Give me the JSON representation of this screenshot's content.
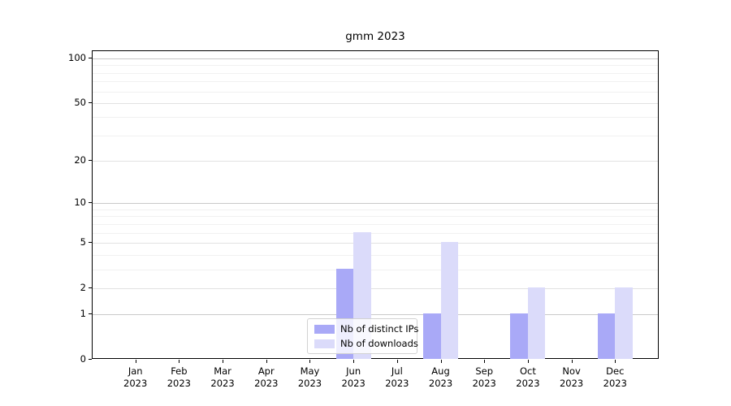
{
  "figure": {
    "title": "gmm 2023"
  },
  "chart_data": {
    "type": "bar",
    "title": "gmm 2023",
    "categories": [
      "Jan",
      "Feb",
      "Mar",
      "Apr",
      "May",
      "Jun",
      "Jul",
      "Aug",
      "Sep",
      "Oct",
      "Nov",
      "Dec"
    ],
    "x_tick_year": "2023",
    "series": [
      {
        "name": "Nb of distinct IPs",
        "color": "#a9a9f7",
        "values": [
          0,
          0,
          0,
          0,
          0,
          3,
          0,
          1,
          0,
          1,
          0,
          1
        ]
      },
      {
        "name": "Nb of downloads",
        "color": "#dbdbfa",
        "values": [
          0,
          0,
          0,
          0,
          0,
          6,
          0,
          5,
          0,
          2,
          0,
          2
        ]
      }
    ],
    "xlabel": "",
    "ylabel": "",
    "y_axis": {
      "scale": "log1p",
      "ticks": [
        0,
        1,
        2,
        5,
        10,
        20,
        50,
        100
      ],
      "minor_ticks": [
        3,
        4,
        6,
        7,
        8,
        9,
        30,
        40,
        60,
        70,
        80,
        90
      ],
      "ylim": [
        0,
        112
      ]
    },
    "grid": true,
    "legend": {
      "position": "lower center",
      "entries": [
        "Nb of distinct IPs",
        "Nb of downloads"
      ]
    }
  },
  "colors": {
    "background": "#ffffff",
    "spine": "#000000",
    "decade_gridline": "#c9c9c9",
    "labeled_gridline": "#e2e2e2",
    "minor_gridline": "#f1f1f1",
    "bar_distinct_ips": "#a9a9f7",
    "bar_downloads": "#dbdbfa",
    "legend_border": "#d2d2d2"
  }
}
